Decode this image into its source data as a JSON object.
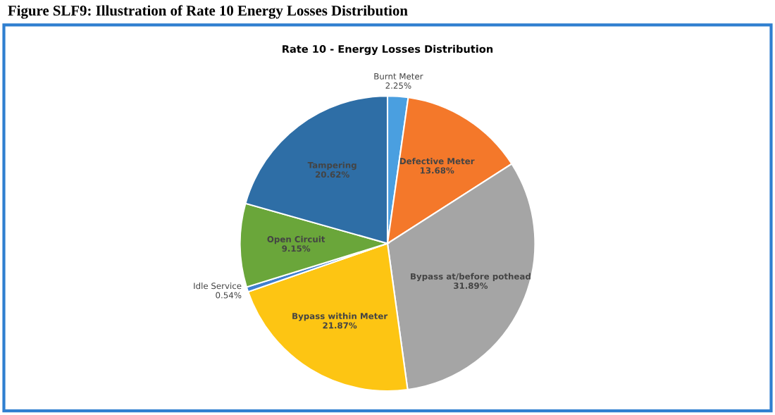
{
  "chart_data": {
    "type": "pie",
    "title": "Rate 10 - Energy Losses Distribution",
    "annotations": [
      "Figure SLF9: Illustration of Rate 10 Energy Losses Distribution"
    ],
    "categories": [
      "Burnt Meter",
      "Defective Meter",
      "Bypass at/before pothead",
      "Bypass within Meter",
      "Idle Service",
      "Open Circuit",
      "Tampering"
    ],
    "values": [
      2.25,
      13.68,
      31.89,
      21.87,
      0.54,
      9.15,
      20.62
    ],
    "value_labels": [
      "2.25%",
      "13.68%",
      "31.89%",
      "21.87%",
      "0.54%",
      "9.15%",
      "20.62%"
    ],
    "colors": [
      "#4a9fe0",
      "#f4782a",
      "#a5a5a5",
      "#fdc513",
      "#3f7fcf",
      "#6aa63a",
      "#2e6ea6"
    ],
    "legend": false
  }
}
